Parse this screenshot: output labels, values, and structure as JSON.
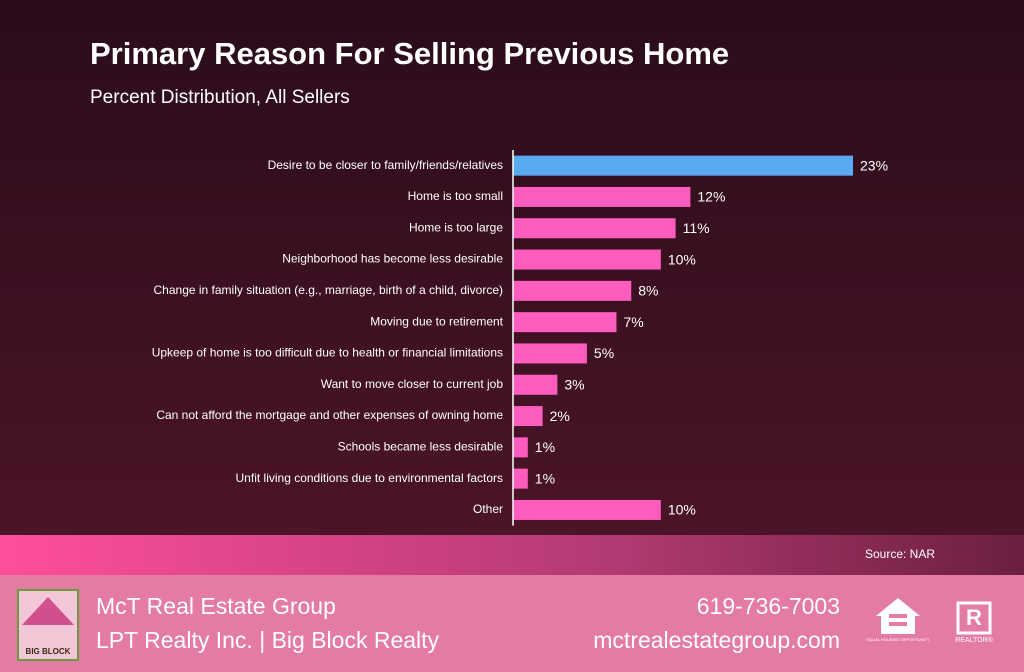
{
  "chart_data": {
    "type": "hbar",
    "title": "Primary Reason For Selling Previous Home",
    "subtitle": "Percent Distribution, All Sellers",
    "categories": [
      "Desire to be closer to family/friends/relatives",
      "Home is too small",
      "Home is too large",
      "Neighborhood has become less desirable",
      "Change in family situation (e.g., marriage, birth of a child, divorce)",
      "Moving due to retirement",
      "Upkeep of home is too difficult due to health or financial limitations",
      "Want to move closer to current job",
      "Can not afford the mortgage and other expenses of owning home",
      "Schools became less desirable",
      "Unfit living conditions due to environmental factors",
      "Other"
    ],
    "values": [
      23,
      12,
      11,
      10,
      8,
      7,
      5,
      3,
      2,
      1,
      1,
      10
    ],
    "value_labels": [
      "23%",
      "12%",
      "11%",
      "10%",
      "8%",
      "7%",
      "5%",
      "3%",
      "2%",
      "1%",
      "1%",
      "10%"
    ],
    "colors": [
      "#5aaaf2",
      "#ff5cbf",
      "#ff5cbf",
      "#ff5cbf",
      "#ff5cbf",
      "#ff5cbf",
      "#ff5cbf",
      "#ff5cbf",
      "#ff5cbf",
      "#ff5cbf",
      "#ff5cbf",
      "#ff5cbf"
    ],
    "source": "Source: NAR"
  },
  "footer": {
    "company": "McT Real Estate Group",
    "brokerage": "LPT Realty Inc. | Big Block Realty",
    "phone": "619-736-7003",
    "website": "mctrealestategroup.com",
    "logo_text": "BIG BLOCK",
    "equal_housing": "EQUAL HOUSING OPPORTUNITY",
    "realtor": "REALTOR®"
  }
}
